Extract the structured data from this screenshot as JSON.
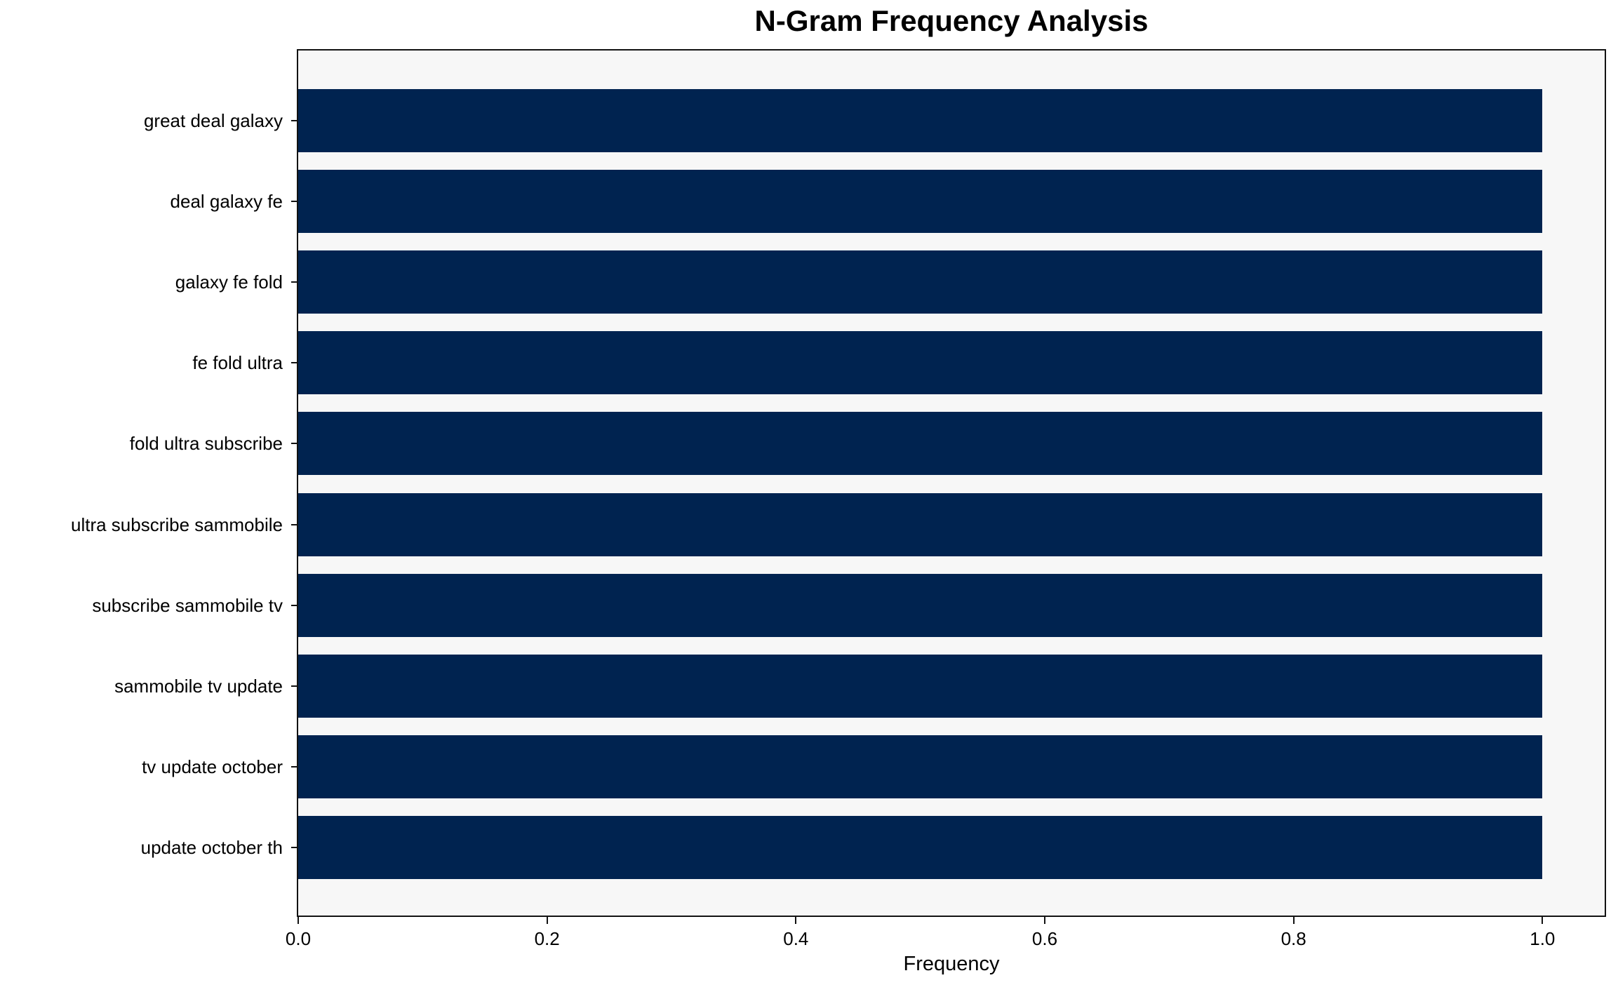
{
  "chart_data": {
    "type": "bar",
    "orientation": "horizontal",
    "title": "N-Gram Frequency Analysis",
    "xlabel": "Frequency",
    "ylabel": "",
    "categories": [
      "great deal galaxy",
      "deal galaxy fe",
      "galaxy fe fold",
      "fe fold ultra",
      "fold ultra subscribe",
      "ultra subscribe sammobile",
      "subscribe sammobile tv",
      "sammobile tv update",
      "tv update october",
      "update october th"
    ],
    "values": [
      1.0,
      1.0,
      1.0,
      1.0,
      1.0,
      1.0,
      1.0,
      1.0,
      1.0,
      1.0
    ],
    "xlim": [
      0,
      1.05
    ],
    "x_ticks": [
      {
        "value": 0.0,
        "label": "0.0"
      },
      {
        "value": 0.2,
        "label": "0.2"
      },
      {
        "value": 0.4,
        "label": "0.4"
      },
      {
        "value": 0.6,
        "label": "0.6"
      },
      {
        "value": 0.8,
        "label": "0.8"
      },
      {
        "value": 1.0,
        "label": "1.0"
      }
    ],
    "grid": false,
    "legend": null,
    "bar_color": "#002350",
    "plot_background_color": "#f7f7f7",
    "figure_background_color": "#ffffff",
    "axis_color": "#121212"
  }
}
